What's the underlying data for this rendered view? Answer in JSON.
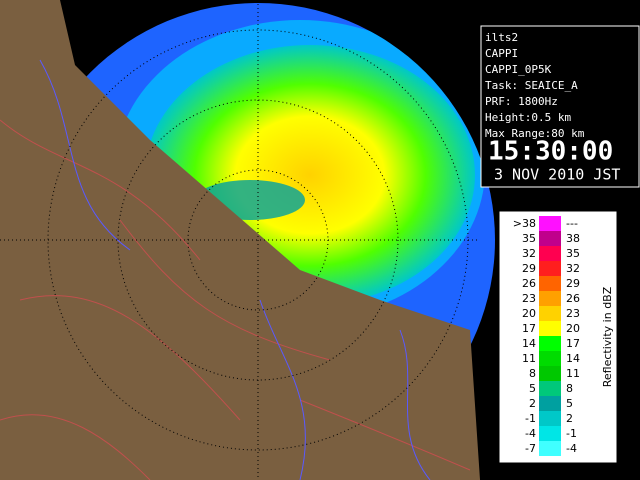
{
  "info": {
    "lines": [
      "ilts2",
      "CAPPI",
      "CAPPI_0P5K",
      "Task: SEAICE_A",
      "PRF: 1800Hz",
      "Height:0.5 km",
      "Max Range:80 km"
    ],
    "time": "15:30:00",
    "date": "3 NOV 2010 JST"
  },
  "legend": {
    "title": "Reflectivity in dBZ",
    "rows": [
      {
        "low": ">38",
        "high": "---",
        "color": "#ff10ff"
      },
      {
        "low": "35",
        "high": "38",
        "color": "#c0008c"
      },
      {
        "low": "32",
        "high": "35",
        "color": "#ff0050"
      },
      {
        "low": "29",
        "high": "32",
        "color": "#ff1e1e"
      },
      {
        "low": "26",
        "high": "29",
        "color": "#ff6400"
      },
      {
        "low": "23",
        "high": "26",
        "color": "#ffa000"
      },
      {
        "low": "20",
        "high": "23",
        "color": "#ffd200"
      },
      {
        "low": "17",
        "high": "20",
        "color": "#ffff00"
      },
      {
        "low": "14",
        "high": "17",
        "color": "#00ff00"
      },
      {
        "low": "11",
        "high": "14",
        "color": "#00dc00"
      },
      {
        "low": "8",
        "high": "11",
        "color": "#00c800"
      },
      {
        "low": "5",
        "high": "8",
        "color": "#00c87a"
      },
      {
        "low": "2",
        "high": "5",
        "color": "#00a0a0"
      },
      {
        "low": "-1",
        "high": "2",
        "color": "#00c8c8"
      },
      {
        "low": "-4",
        "high": "-1",
        "color": "#00e6e6"
      },
      {
        "low": "-7",
        "high": "-4",
        "color": "#40ffff"
      }
    ]
  }
}
